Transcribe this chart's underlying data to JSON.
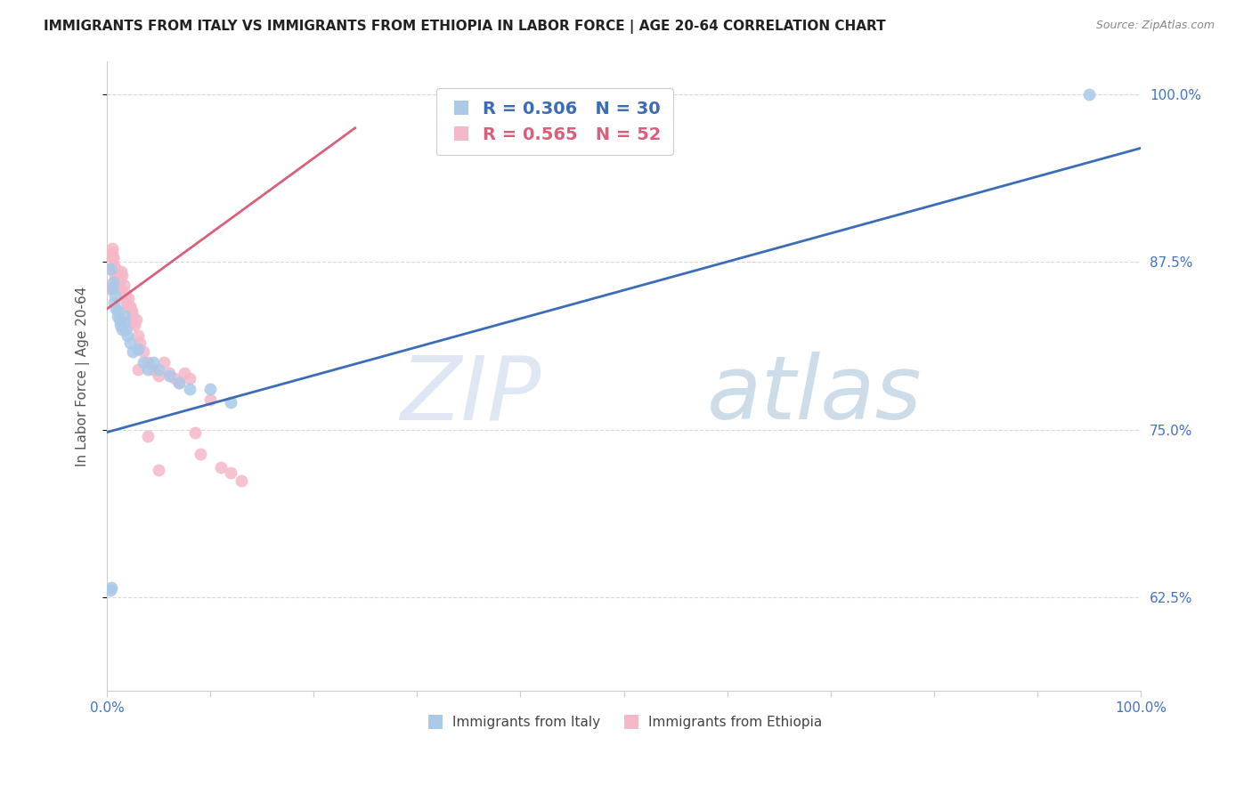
{
  "title": "IMMIGRANTS FROM ITALY VS IMMIGRANTS FROM ETHIOPIA IN LABOR FORCE | AGE 20-64 CORRELATION CHART",
  "source": "Source: ZipAtlas.com",
  "ylabel": "In Labor Force | Age 20-64",
  "watermark_zip": "ZIP",
  "watermark_atlas": "atlas",
  "italy_color": "#aac9e8",
  "ethiopia_color": "#f5b8c8",
  "italy_line_color": "#3b6cb7",
  "ethiopia_line_color": "#d9607a",
  "italy_R": 0.306,
  "italy_N": 30,
  "ethiopia_R": 0.565,
  "ethiopia_N": 52,
  "italy_x": [
    0.003,
    0.005,
    0.006,
    0.007,
    0.008,
    0.009,
    0.01,
    0.011,
    0.012,
    0.013,
    0.015,
    0.016,
    0.017,
    0.018,
    0.02,
    0.022,
    0.025,
    0.03,
    0.035,
    0.04,
    0.045,
    0.05,
    0.06,
    0.07,
    0.08,
    0.1,
    0.12,
    0.003,
    0.004,
    0.95
  ],
  "italy_y": [
    0.87,
    0.855,
    0.86,
    0.845,
    0.85,
    0.84,
    0.835,
    0.838,
    0.832,
    0.828,
    0.825,
    0.83,
    0.835,
    0.825,
    0.82,
    0.815,
    0.808,
    0.81,
    0.8,
    0.795,
    0.8,
    0.795,
    0.79,
    0.785,
    0.78,
    0.78,
    0.77,
    0.63,
    0.632,
    1.0
  ],
  "ethiopia_x": [
    0.002,
    0.003,
    0.004,
    0.005,
    0.006,
    0.007,
    0.008,
    0.009,
    0.01,
    0.011,
    0.012,
    0.013,
    0.014,
    0.015,
    0.016,
    0.017,
    0.018,
    0.019,
    0.02,
    0.021,
    0.022,
    0.023,
    0.024,
    0.025,
    0.026,
    0.027,
    0.028,
    0.03,
    0.032,
    0.035,
    0.04,
    0.045,
    0.05,
    0.055,
    0.06,
    0.065,
    0.07,
    0.075,
    0.08,
    0.085,
    0.09,
    0.1,
    0.11,
    0.12,
    0.13,
    0.005,
    0.006,
    0.007,
    0.008,
    0.03,
    0.04,
    0.05
  ],
  "ethiopia_y": [
    0.855,
    0.87,
    0.88,
    0.885,
    0.878,
    0.872,
    0.868,
    0.862,
    0.858,
    0.865,
    0.855,
    0.862,
    0.868,
    0.865,
    0.858,
    0.852,
    0.848,
    0.845,
    0.842,
    0.848,
    0.842,
    0.84,
    0.838,
    0.835,
    0.83,
    0.828,
    0.832,
    0.82,
    0.815,
    0.808,
    0.8,
    0.795,
    0.79,
    0.8,
    0.792,
    0.788,
    0.785,
    0.792,
    0.788,
    0.748,
    0.732,
    0.772,
    0.722,
    0.718,
    0.712,
    0.882,
    0.878,
    0.872,
    0.865,
    0.795,
    0.745,
    0.72
  ],
  "xlim": [
    0.0,
    1.0
  ],
  "ylim": [
    0.555,
    1.025
  ],
  "yticks": [
    0.625,
    0.75,
    0.875,
    1.0
  ],
  "ytick_labels": [
    "62.5%",
    "75.0%",
    "87.5%",
    "100.0%"
  ],
  "xtick_positions": [
    0.0,
    1.0
  ],
  "xtick_labels": [
    "0.0%",
    "100.0%"
  ],
  "background_color": "#ffffff",
  "grid_color": "#d8d8d8",
  "italy_line_x0": 0.0,
  "italy_line_y0": 0.748,
  "italy_line_x1": 1.0,
  "italy_line_y1": 0.96,
  "ethiopia_line_x0": 0.0,
  "ethiopia_line_y0": 0.84,
  "ethiopia_line_x1": 0.24,
  "ethiopia_line_y1": 0.975
}
